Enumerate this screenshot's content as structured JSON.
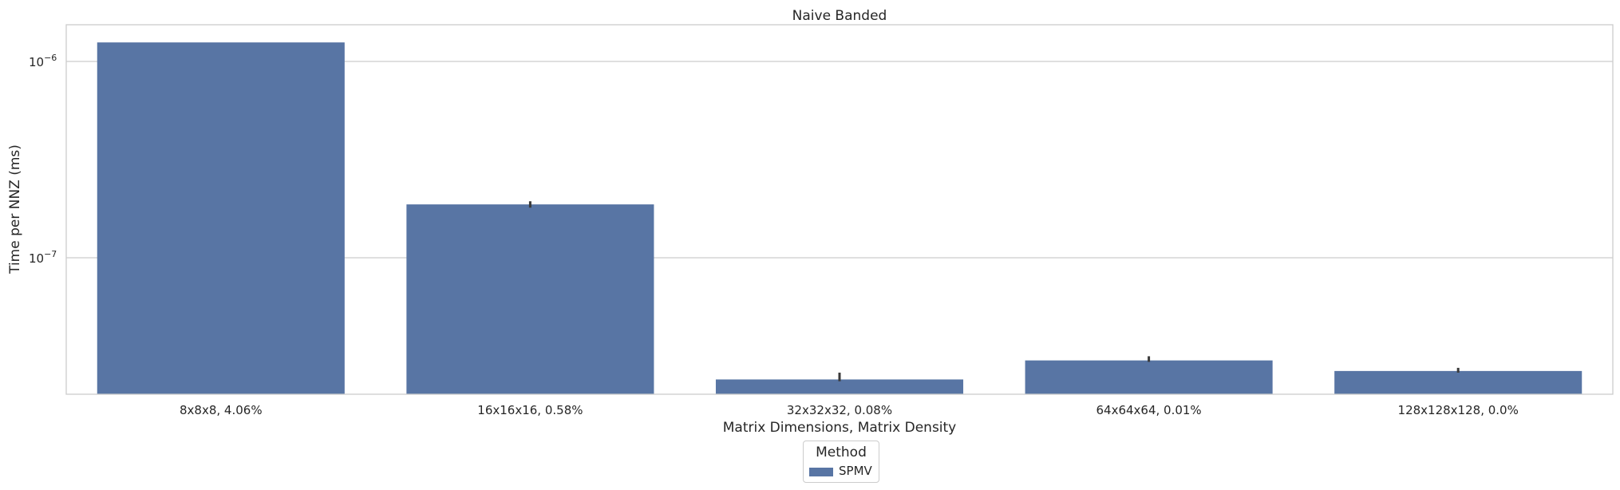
{
  "chart_data": {
    "type": "bar",
    "title": "Naive Banded",
    "xlabel": "Matrix Dimensions, Matrix Density",
    "ylabel": "Time per NNZ (ms)",
    "yscale": "log",
    "ylim": [
      2e-08,
      1.5e-06
    ],
    "yticks": [
      {
        "value": 1e-07,
        "base": "10",
        "exp": "−7"
      },
      {
        "value": 1e-06,
        "base": "10",
        "exp": "−6"
      }
    ],
    "grid": "horizontal",
    "categories": [
      "8x8x8, 4.06%",
      "16x16x16, 0.58%",
      "32x32x32, 0.08%",
      "64x64x64, 0.01%",
      "128x128x128, 0.0%"
    ],
    "series": [
      {
        "name": "SPMV",
        "color": "#5875a4",
        "values": [
          1.25e-06,
          1.87e-07,
          2.4e-08,
          3e-08,
          2.65e-08
        ],
        "error": [
          [
            1.25e-06,
            1.25e-06
          ],
          [
            1.8e-07,
            1.94e-07
          ],
          [
            2.35e-08,
            2.6e-08
          ],
          [
            2.95e-08,
            3.15e-08
          ],
          [
            2.6e-08,
            2.75e-08
          ]
        ]
      }
    ],
    "legend": {
      "title": "Method",
      "position": "bottom-center"
    }
  }
}
